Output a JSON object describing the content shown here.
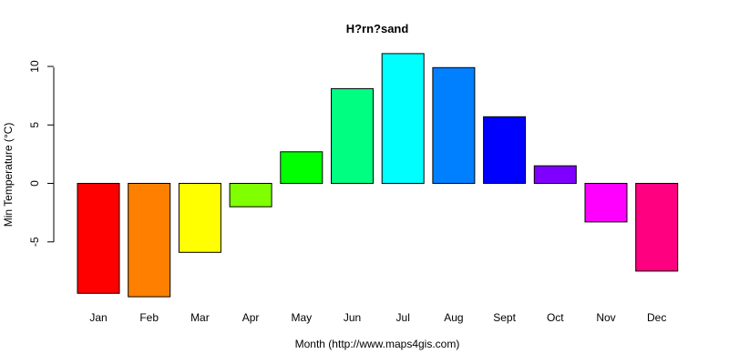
{
  "chart_data": {
    "type": "bar",
    "title": "H?rn?sand",
    "xlabel": "Month (http://www.maps4gis.com)",
    "ylabel": "Min Temperature (°C)",
    "categories": [
      "Jan",
      "Feb",
      "Mar",
      "Apr",
      "May",
      "Jun",
      "Jul",
      "Aug",
      "Sept",
      "Oct",
      "Nov",
      "Dec"
    ],
    "values": [
      -9.4,
      -9.7,
      -5.9,
      -2.0,
      2.7,
      8.1,
      11.1,
      9.9,
      5.7,
      1.5,
      -3.3,
      -7.5
    ],
    "colors": [
      "#FF0000",
      "#FF8000",
      "#FFFF00",
      "#80FF00",
      "#00FF00",
      "#00FF80",
      "#00FFFF",
      "#0080FF",
      "#0000FF",
      "#8000FF",
      "#FF00FF",
      "#FF0080"
    ],
    "yticks": [
      -5,
      0,
      5,
      10
    ],
    "ylim": [
      -10,
      11.5
    ],
    "grid": false,
    "legend": "none"
  }
}
